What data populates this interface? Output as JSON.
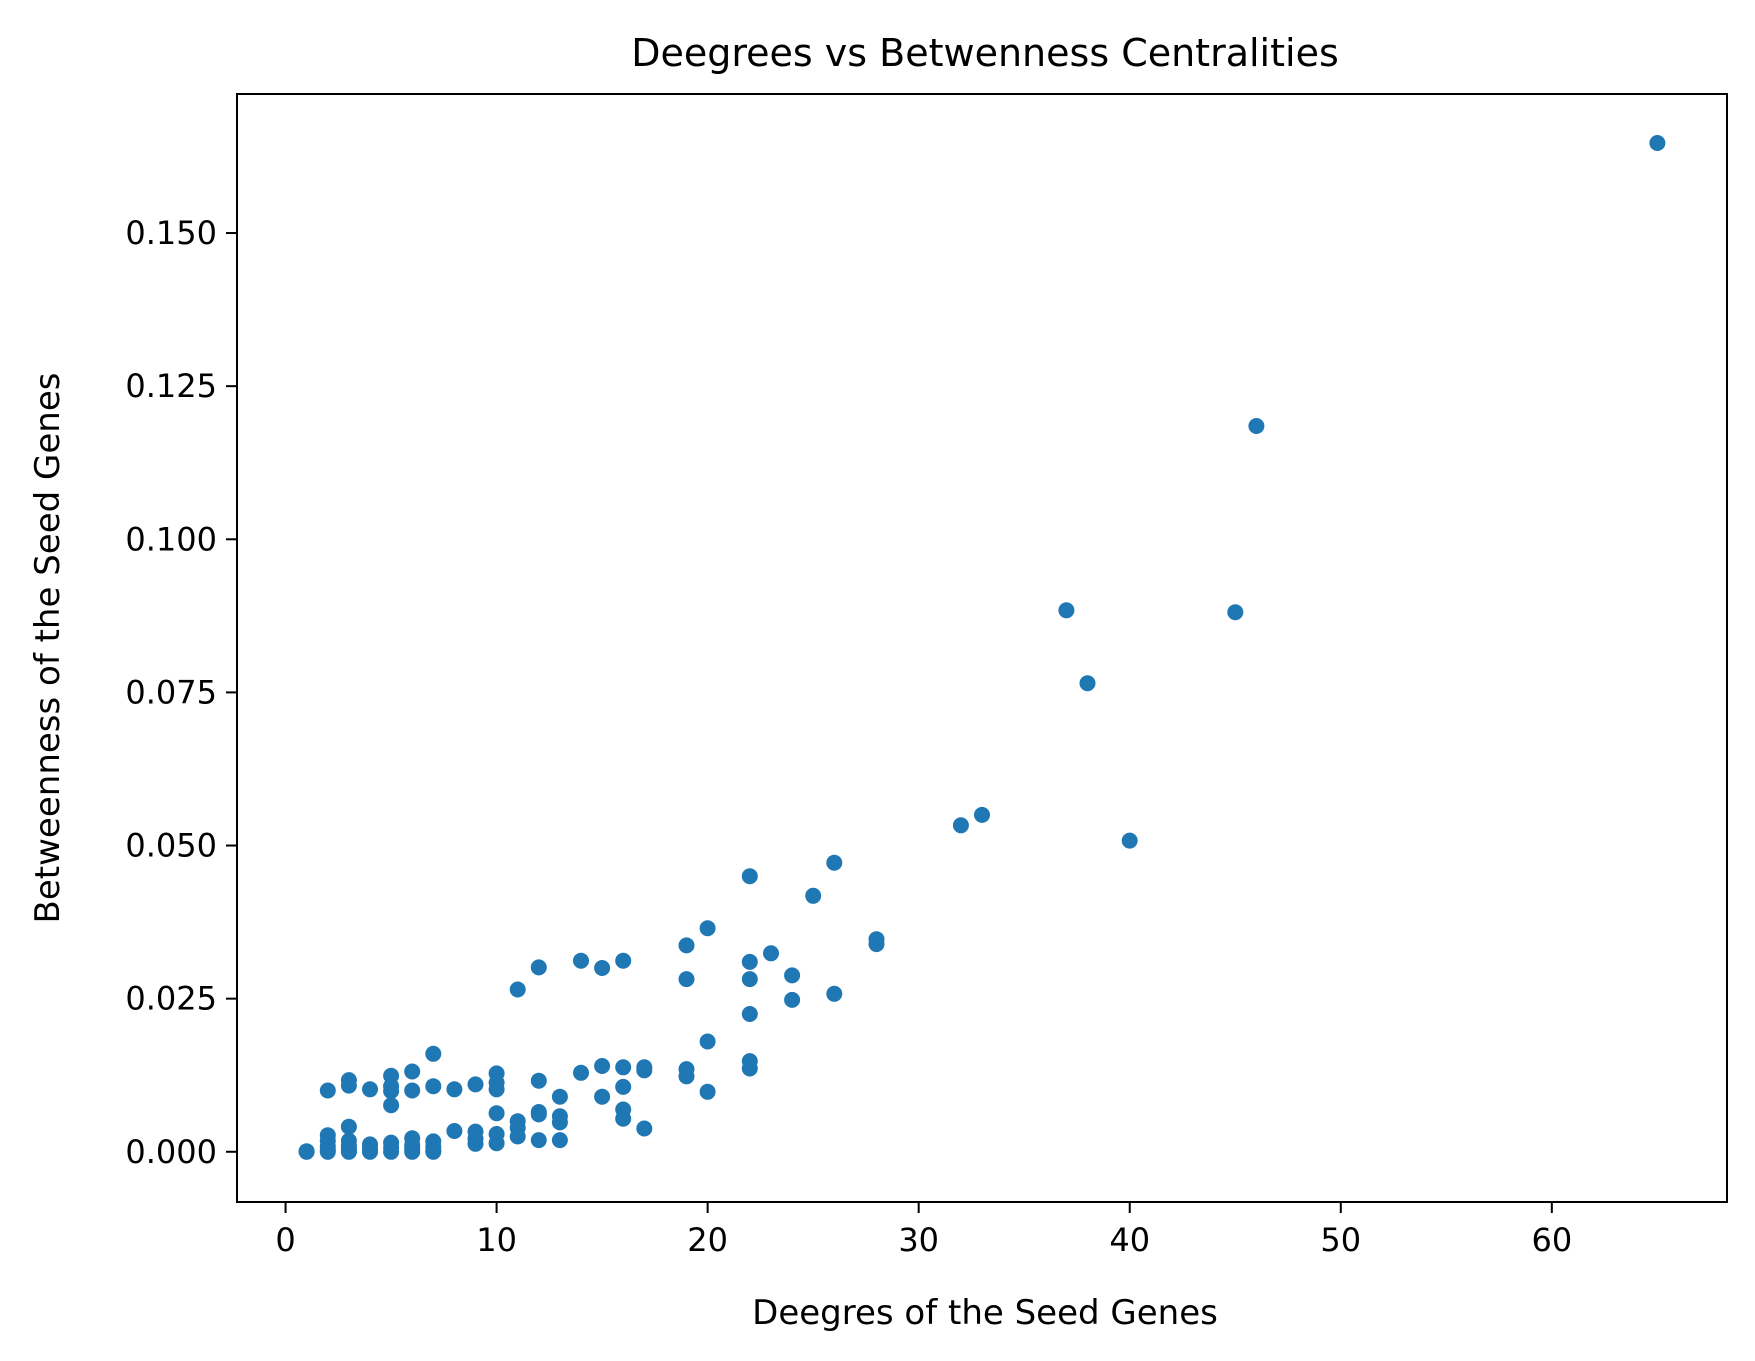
{
  "chart_data": {
    "type": "scatter",
    "title": "Deegrees vs Betwenness Centralities",
    "xlabel": "Deegres of the Seed Genes",
    "ylabel": "Betweenness of the Seed Genes",
    "xlim": [
      -2.3,
      68.3
    ],
    "ylim": [
      -0.0082,
      0.1727
    ],
    "xticks": [
      0,
      10,
      20,
      30,
      40,
      50,
      60
    ],
    "xtick_labels": [
      "0",
      "10",
      "20",
      "30",
      "40",
      "50",
      "60"
    ],
    "yticks": [
      0.0,
      0.025,
      0.05,
      0.075,
      0.1,
      0.125,
      0.15
    ],
    "ytick_labels": [
      "0.000",
      "0.025",
      "0.050",
      "0.075",
      "0.100",
      "0.125",
      "0.150"
    ],
    "grid": false,
    "legend": "none",
    "marker_color": "#1f77b4",
    "points": [
      [
        65,
        0.1647
      ],
      [
        46,
        0.1185
      ],
      [
        37,
        0.0884
      ],
      [
        45,
        0.0881
      ],
      [
        38,
        0.0765
      ],
      [
        33,
        0.055
      ],
      [
        32,
        0.0533
      ],
      [
        40,
        0.0508
      ],
      [
        22,
        0.045
      ],
      [
        26,
        0.0472
      ],
      [
        25,
        0.0418
      ],
      [
        20,
        0.0365
      ],
      [
        19,
        0.0337
      ],
      [
        28,
        0.0347
      ],
      [
        28,
        0.0339
      ],
      [
        23,
        0.0324
      ],
      [
        14,
        0.0312
      ],
      [
        16,
        0.0312
      ],
      [
        22,
        0.031
      ],
      [
        12,
        0.0301
      ],
      [
        15,
        0.03
      ],
      [
        24,
        0.0288
      ],
      [
        19,
        0.0282
      ],
      [
        22,
        0.0282
      ],
      [
        11,
        0.0265
      ],
      [
        26,
        0.0258
      ],
      [
        24,
        0.0248
      ],
      [
        22,
        0.0225
      ],
      [
        20,
        0.018
      ],
      [
        7,
        0.016
      ],
      [
        22,
        0.0148
      ],
      [
        15,
        0.014
      ],
      [
        16,
        0.0138
      ],
      [
        17,
        0.0138
      ],
      [
        22,
        0.0136
      ],
      [
        19,
        0.0135
      ],
      [
        17,
        0.0133
      ],
      [
        6,
        0.0131
      ],
      [
        14,
        0.0129
      ],
      [
        10,
        0.0128
      ],
      [
        5,
        0.0124
      ],
      [
        19,
        0.0123
      ],
      [
        3,
        0.0117
      ],
      [
        12,
        0.0116
      ],
      [
        10,
        0.0113
      ],
      [
        9,
        0.011
      ],
      [
        3,
        0.0108
      ],
      [
        5,
        0.0107
      ],
      [
        7,
        0.0107
      ],
      [
        16,
        0.0106
      ],
      [
        4,
        0.0102
      ],
      [
        8,
        0.0102
      ],
      [
        10,
        0.0102
      ],
      [
        2,
        0.01
      ],
      [
        6,
        0.01
      ],
      [
        5,
        0.0099
      ],
      [
        20,
        0.0098
      ],
      [
        15,
        0.009
      ],
      [
        13,
        0.009
      ],
      [
        5,
        0.0076
      ],
      [
        16,
        0.0069
      ],
      [
        12,
        0.0065
      ],
      [
        10,
        0.0063
      ],
      [
        12,
        0.0061
      ],
      [
        13,
        0.0058
      ],
      [
        16,
        0.0054
      ],
      [
        11,
        0.005
      ],
      [
        13,
        0.0048
      ],
      [
        3,
        0.0041
      ],
      [
        11,
        0.0039
      ],
      [
        17,
        0.0038
      ],
      [
        8,
        0.0034
      ],
      [
        9,
        0.0033
      ],
      [
        10,
        0.0029
      ],
      [
        2,
        0.0027
      ],
      [
        11,
        0.0025
      ],
      [
        6,
        0.0022
      ],
      [
        9,
        0.0021
      ],
      [
        12,
        0.0019
      ],
      [
        13,
        0.0019
      ],
      [
        2,
        0.0018
      ],
      [
        3,
        0.0018
      ],
      [
        7,
        0.0017
      ],
      [
        5,
        0.0015
      ],
      [
        10,
        0.0014
      ],
      [
        9,
        0.0013
      ],
      [
        4,
        0.0012
      ],
      [
        6,
        0.0011
      ],
      [
        3,
        0.001
      ],
      [
        2,
        0.0009
      ],
      [
        7,
        0.0008
      ],
      [
        5,
        0.0007
      ],
      [
        4,
        0.0006
      ],
      [
        6,
        0.0005
      ],
      [
        3,
        0.0004
      ],
      [
        2,
        0.0003
      ],
      [
        7,
        0.0002
      ],
      [
        4,
        0.0002
      ],
      [
        3,
        0.0001
      ],
      [
        1,
        0.0001
      ],
      [
        1,
        0.0
      ],
      [
        2,
        0.0
      ],
      [
        3,
        0.0
      ],
      [
        4,
        0.0
      ],
      [
        5,
        0.0
      ],
      [
        6,
        0.0
      ],
      [
        7,
        0.0
      ]
    ]
  }
}
